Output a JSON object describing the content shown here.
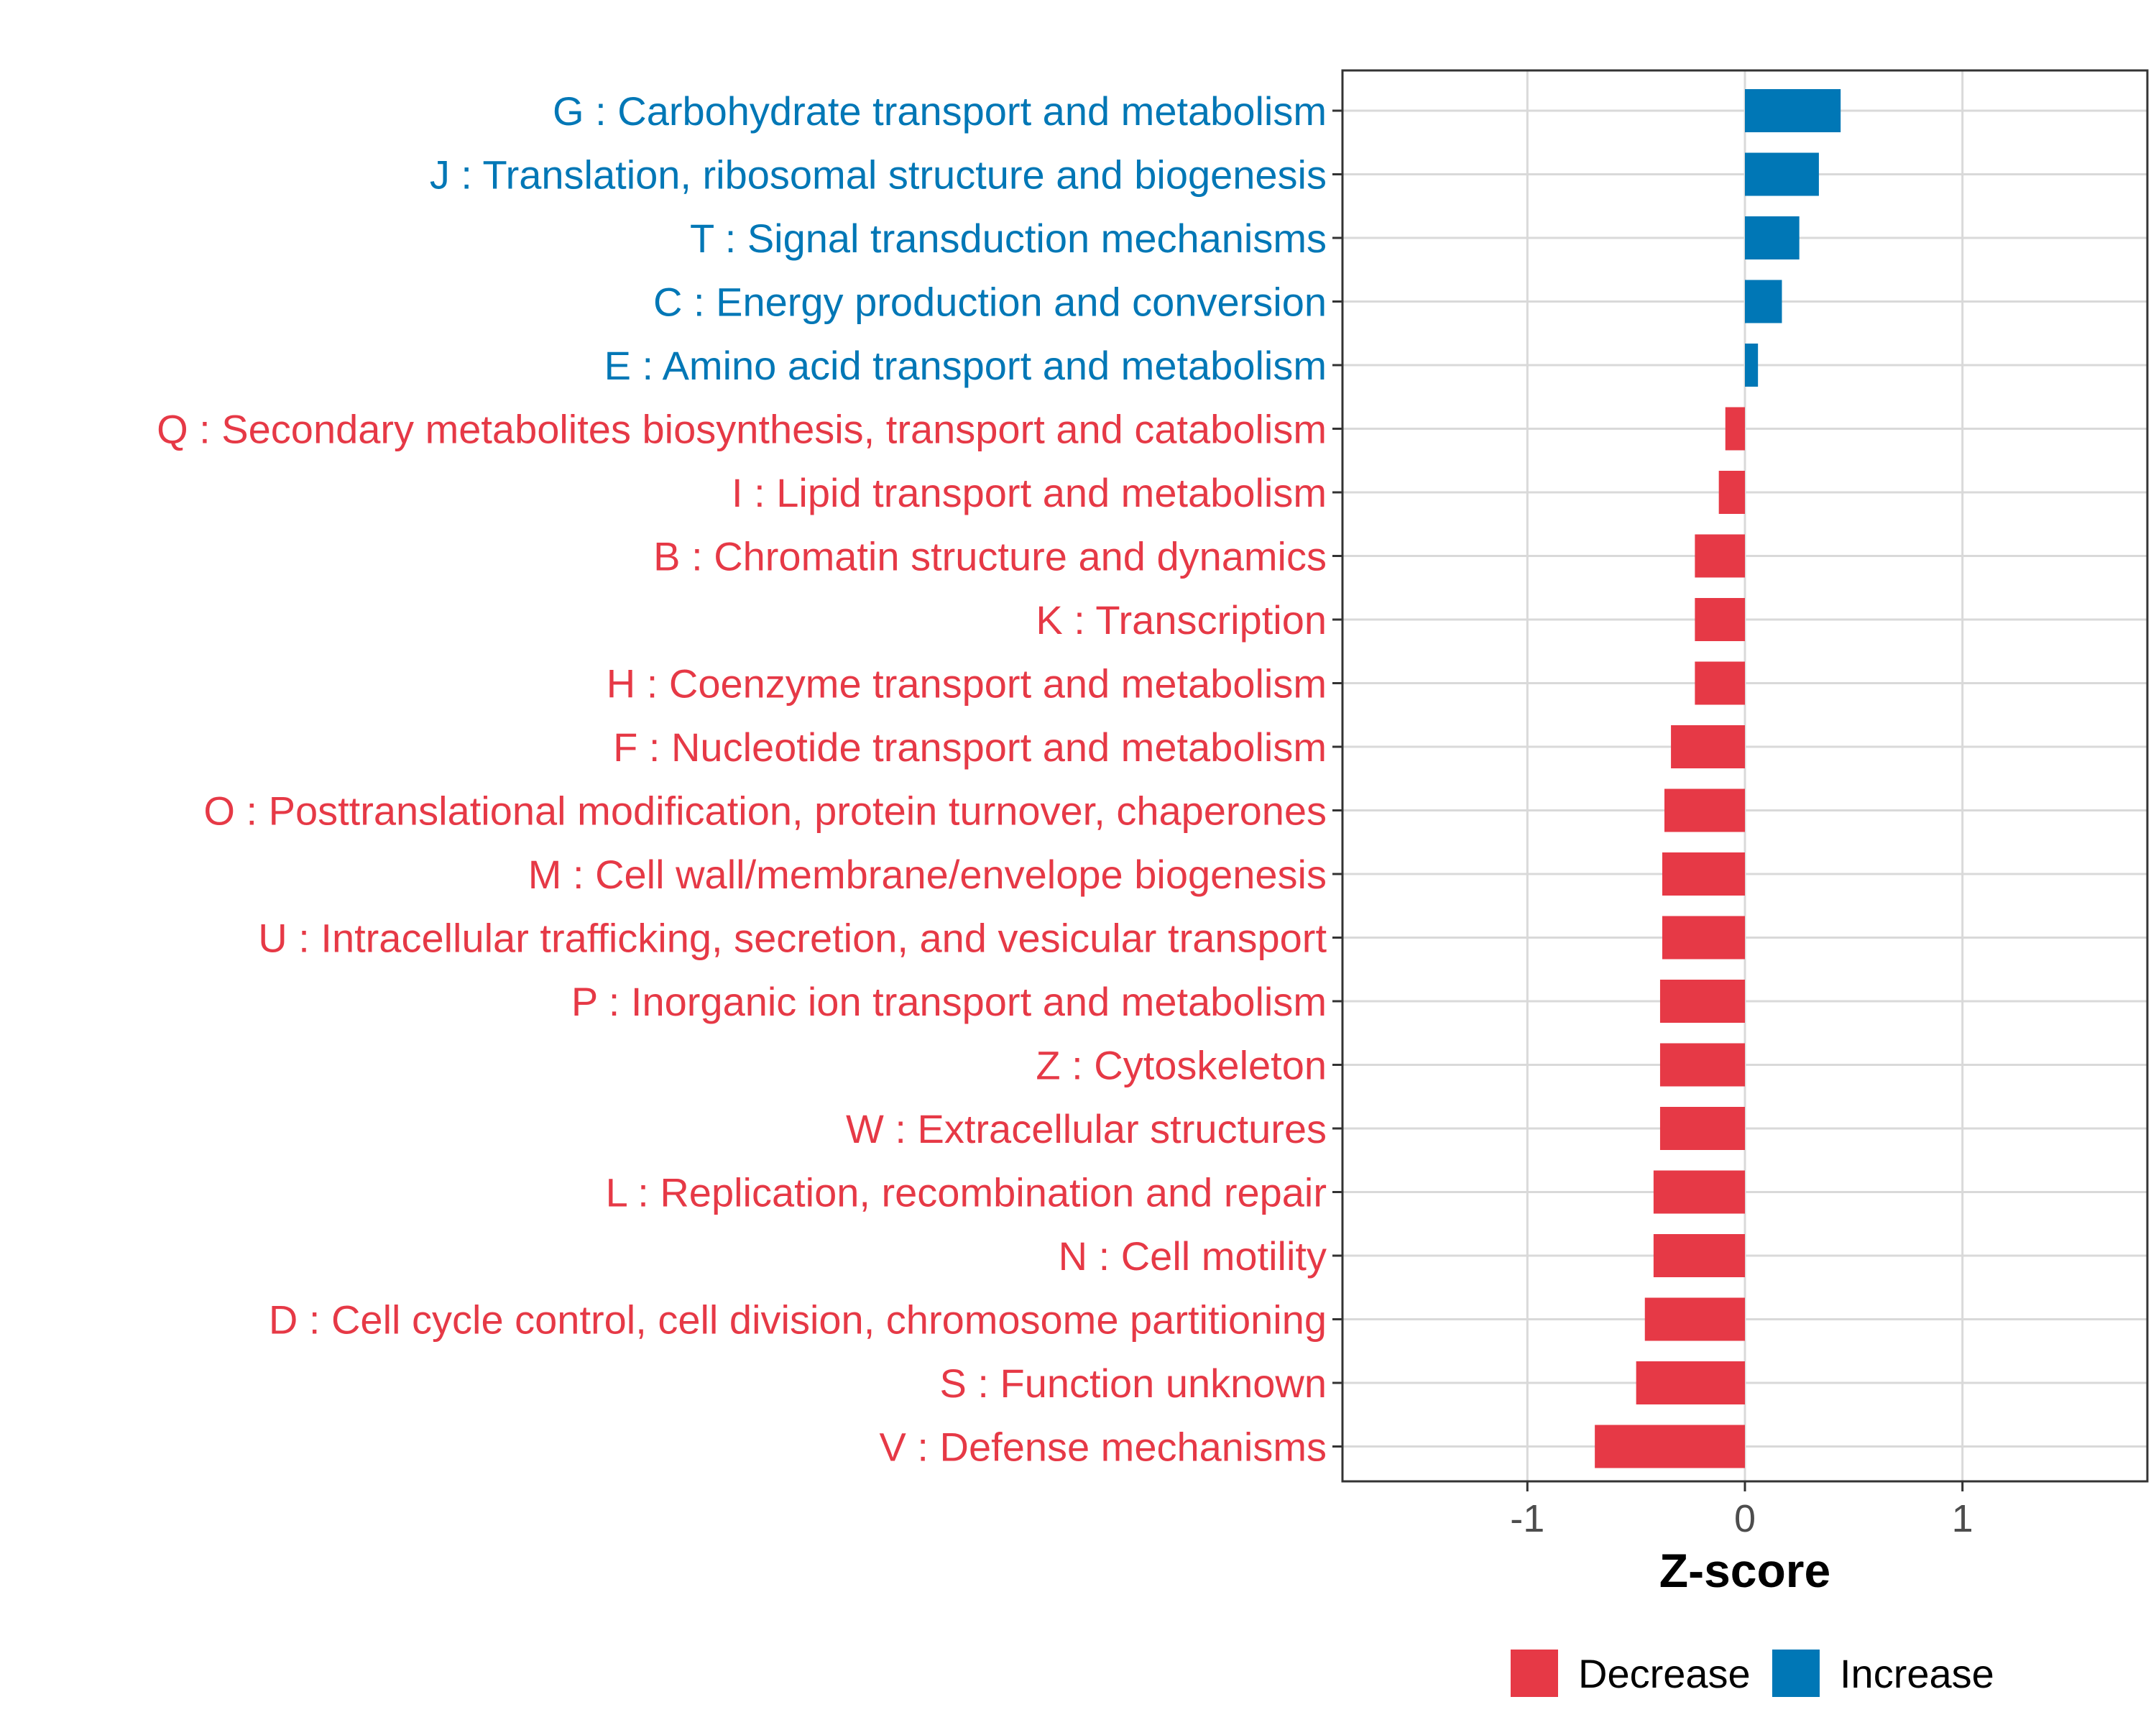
{
  "chart_data": {
    "type": "bar",
    "orientation": "horizontal",
    "title": "",
    "xlabel": "Z-score",
    "ylabel": "",
    "xlim": [
      -1.85,
      1.85
    ],
    "xticks": [
      -1,
      0,
      1
    ],
    "xtick_labels": [
      "-1",
      "0",
      "1"
    ],
    "grid": true,
    "legend_position": "bottom",
    "colors": {
      "Decrease": "#E63946",
      "Increase": "#0077B6"
    },
    "legend": [
      {
        "name": "Decrease",
        "color": "#E63946"
      },
      {
        "name": "Increase",
        "color": "#0077B6"
      }
    ],
    "categories": [
      "G : Carbohydrate transport and metabolism",
      "J : Translation, ribosomal structure and biogenesis",
      "T : Signal transduction mechanisms",
      "C : Energy production and conversion",
      "E : Amino acid transport and metabolism",
      "Q : Secondary metabolites biosynthesis, transport and catabolism",
      "I : Lipid transport and metabolism",
      "B : Chromatin structure and dynamics",
      "K : Transcription",
      "H : Coenzyme transport and metabolism",
      "F : Nucleotide transport and metabolism",
      "O : Posttranslational modification, protein turnover, chaperones",
      "M : Cell wall/membrane/envelope biogenesis",
      "U : Intracellular trafficking, secretion, and vesicular transport",
      "P : Inorganic ion transport and metabolism",
      "Z : Cytoskeleton",
      "W : Extracellular structures",
      "L : Replication, recombination and repair",
      "N : Cell motility",
      "D : Cell cycle control, cell division, chromosome partitioning",
      "S : Function unknown",
      "V : Defense mechanisms"
    ],
    "values": [
      0.44,
      0.34,
      0.25,
      0.17,
      0.06,
      -0.09,
      -0.12,
      -0.23,
      -0.23,
      -0.23,
      -0.34,
      -0.37,
      -0.38,
      -0.38,
      -0.39,
      -0.39,
      -0.39,
      -0.42,
      -0.42,
      -0.46,
      -0.5,
      -0.69
    ],
    "groups": [
      "Increase",
      "Increase",
      "Increase",
      "Increase",
      "Increase",
      "Decrease",
      "Decrease",
      "Decrease",
      "Decrease",
      "Decrease",
      "Decrease",
      "Decrease",
      "Decrease",
      "Decrease",
      "Decrease",
      "Decrease",
      "Decrease",
      "Decrease",
      "Decrease",
      "Decrease",
      "Decrease",
      "Decrease"
    ]
  }
}
